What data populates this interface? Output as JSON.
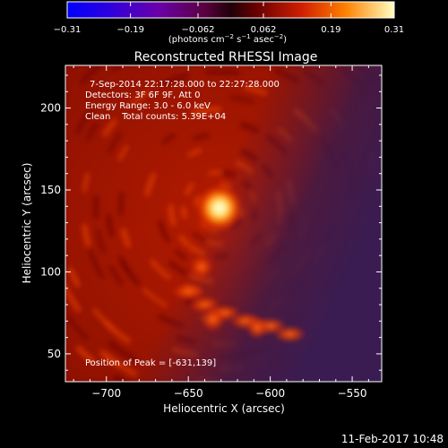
{
  "chart_data": {
    "type": "heatmap",
    "title": "Reconstructed RHESSI Image",
    "xlabel": "Heliocentric X (arcsec)",
    "ylabel": "Heliocentric Y (arcsec)",
    "xlim": [
      -725,
      -532
    ],
    "ylim": [
      33,
      226
    ],
    "xticks": [
      -700,
      -650,
      -600,
      -550
    ],
    "yticks": [
      50,
      100,
      150,
      200
    ],
    "xtick_labels": [
      "−700",
      "−650",
      "−600",
      "−550"
    ],
    "ytick_labels": [
      "50",
      "100",
      "150",
      "200"
    ],
    "colorbar": {
      "ticks": [
        -0.31,
        -0.19,
        -0.062,
        0.062,
        0.19,
        0.31
      ],
      "tick_labels": [
        "−0.31",
        "−0.19",
        "−0.062",
        "0.062",
        "0.19",
        "0.31"
      ],
      "range": [
        -0.31,
        0.31
      ],
      "label_main": "(photons cm",
      "label_exp1": "−2",
      "label_mid": " s",
      "label_exp2": "−1",
      "label_mid2": " asec",
      "label_exp3": "−2",
      "label_end": ")",
      "colormap": "hot"
    },
    "info_lines": [
      "7-Sep-2014 22:17:28.000 to 22:27:28.000",
      "Detectors: 3F 6F 9F, Att 0",
      "Energy Range: 3.0 - 6.0 keV",
      "Clean    Total counts: 5.39E+04"
    ],
    "peak_label": "Position of Peak = [-631,139]",
    "sources": [
      {
        "x": -631,
        "y": 139,
        "value": 0.31
      },
      {
        "x": -642,
        "y": 103,
        "value": 0.12
      },
      {
        "x": -635,
        "y": 71,
        "value": 0.13
      },
      {
        "x": -608,
        "y": 66,
        "value": 0.11
      }
    ],
    "grid": false
  },
  "footer": {
    "date": "11-Feb-2017 10:48"
  }
}
